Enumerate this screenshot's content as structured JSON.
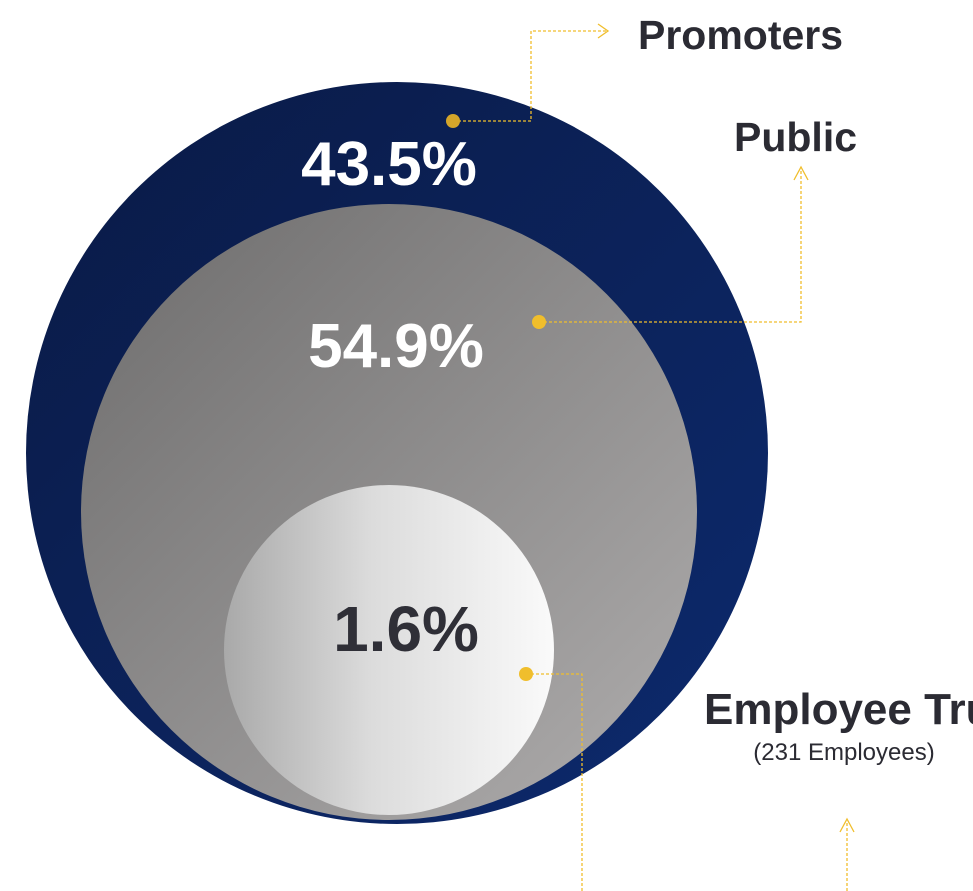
{
  "chart_data": {
    "type": "nested-circles",
    "series": [
      {
        "name": "Promoters",
        "value": 43.5,
        "value_label": "43.5%",
        "color": "#0f2258"
      },
      {
        "name": "Public",
        "value": 54.9,
        "value_label": "54.9%",
        "color": "#8f8e8e"
      },
      {
        "name": "Employee Trusts",
        "sub_label": "(231 Employees)",
        "value": 1.6,
        "value_label": "1.6%",
        "color": "#f4f4f4"
      }
    ],
    "unit": "%",
    "connector_color": "#f0be2c"
  }
}
